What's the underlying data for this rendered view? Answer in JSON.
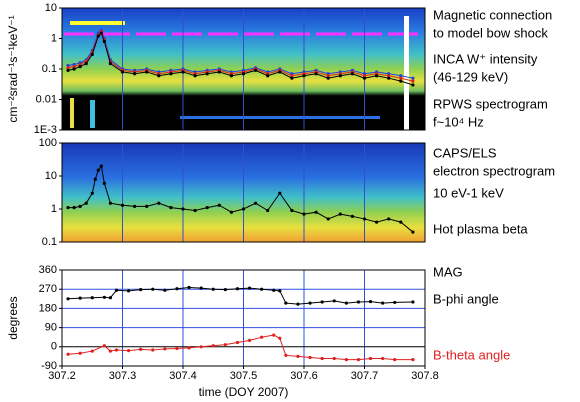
{
  "chart_data": [
    {
      "type": "line",
      "ylabel": "cm⁻²srad⁻¹s⁻¹keV⁻¹",
      "log_y": true,
      "grid": true,
      "annotations": [
        "Magnetic connection",
        "to model bow shock",
        "INCA W⁺ intensity",
        "(46-129 keV)",
        "RPWS spectrogram",
        "f~10⁴ Hz"
      ],
      "xlim": [
        307.2,
        307.8
      ],
      "ylim": [
        0.001,
        10
      ],
      "yticks": [
        10,
        1,
        0.1,
        0.01,
        {
          "value": 0.001,
          "label": "1E-3"
        }
      ],
      "x": [
        307.21,
        307.22,
        307.23,
        307.24,
        307.25,
        307.26,
        307.265,
        307.27,
        307.28,
        307.3,
        307.32,
        307.34,
        307.36,
        307.38,
        307.4,
        307.42,
        307.44,
        307.46,
        307.48,
        307.5,
        307.52,
        307.54,
        307.56,
        307.58,
        307.6,
        307.62,
        307.64,
        307.66,
        307.68,
        307.7,
        307.72,
        307.74,
        307.76,
        307.78
      ],
      "series": [
        {
          "color": "#2040e0",
          "values": [
            0.13,
            0.14,
            0.16,
            0.2,
            0.4,
            1.5,
            1.9,
            1.0,
            0.2,
            0.1,
            0.09,
            0.1,
            0.08,
            0.09,
            0.1,
            0.08,
            0.09,
            0.1,
            0.08,
            0.09,
            0.11,
            0.08,
            0.1,
            0.07,
            0.08,
            0.09,
            0.07,
            0.08,
            0.09,
            0.07,
            0.08,
            0.07,
            0.06,
            0.05
          ]
        },
        {
          "color": "#e02020",
          "values": [
            0.11,
            0.12,
            0.14,
            0.18,
            0.35,
            1.3,
            1.7,
            0.9,
            0.17,
            0.09,
            0.08,
            0.09,
            0.07,
            0.08,
            0.09,
            0.07,
            0.08,
            0.09,
            0.07,
            0.08,
            0.1,
            0.07,
            0.09,
            0.06,
            0.07,
            0.08,
            0.06,
            0.07,
            0.08,
            0.06,
            0.07,
            0.06,
            0.05,
            0.04
          ]
        },
        {
          "color": "#000000",
          "values": [
            0.09,
            0.1,
            0.12,
            0.15,
            0.3,
            1.2,
            1.5,
            0.8,
            0.15,
            0.08,
            0.07,
            0.08,
            0.06,
            0.07,
            0.08,
            0.06,
            0.07,
            0.08,
            0.06,
            0.07,
            0.09,
            0.06,
            0.08,
            0.05,
            0.06,
            0.07,
            0.05,
            0.06,
            0.07,
            0.05,
            0.06,
            0.05,
            0.04,
            0.03
          ]
        }
      ]
    },
    {
      "type": "line",
      "log_y": true,
      "grid": true,
      "annotations": [
        "CAPS/ELS",
        "electron spectrogram",
        "10 eV-1 keV"
      ],
      "xlim": [
        307.2,
        307.8
      ],
      "ylim": [
        0.1,
        100
      ],
      "yticks": [
        100,
        10,
        1,
        0.1
      ],
      "x": [
        307.21,
        307.22,
        307.23,
        307.24,
        307.25,
        307.255,
        307.26,
        307.265,
        307.27,
        307.28,
        307.3,
        307.32,
        307.34,
        307.36,
        307.38,
        307.4,
        307.42,
        307.44,
        307.46,
        307.48,
        307.5,
        307.52,
        307.54,
        307.56,
        307.58,
        307.6,
        307.62,
        307.64,
        307.66,
        307.68,
        307.7,
        307.72,
        307.74,
        307.76,
        307.78
      ],
      "series": [
        {
          "name": "Hot plasma beta",
          "color": "#000000",
          "values": [
            1.1,
            1.1,
            1.2,
            1.5,
            3,
            8,
            15,
            20,
            6,
            1.5,
            1.3,
            1.2,
            1.2,
            1.5,
            1.1,
            1.0,
            0.9,
            1.1,
            1.3,
            0.8,
            1.0,
            1.5,
            0.9,
            3,
            0.9,
            0.7,
            0.8,
            0.5,
            0.7,
            0.6,
            0.5,
            0.4,
            0.5,
            0.4,
            0.2
          ]
        }
      ]
    },
    {
      "type": "line",
      "ylabel": "degrees",
      "xlabel": "time (DOY 2007)",
      "grid": true,
      "annotations": [
        "MAG"
      ],
      "xlim": [
        307.2,
        307.8
      ],
      "ylim": [
        -90,
        360
      ],
      "yticks": [
        360,
        270,
        180,
        90,
        0,
        -90
      ],
      "xticks": [
        307.2,
        307.3,
        307.4,
        307.5,
        307.6,
        307.7,
        307.8
      ],
      "x": [
        307.21,
        307.23,
        307.25,
        307.27,
        307.28,
        307.29,
        307.31,
        307.33,
        307.35,
        307.37,
        307.39,
        307.41,
        307.43,
        307.45,
        307.47,
        307.49,
        307.51,
        307.53,
        307.55,
        307.56,
        307.57,
        307.59,
        307.61,
        307.63,
        307.65,
        307.67,
        307.69,
        307.71,
        307.73,
        307.75,
        307.78
      ],
      "series": [
        {
          "name": "B-phi angle",
          "color": "#000000",
          "values": [
            225,
            228,
            230,
            232,
            230,
            265,
            262,
            268,
            270,
            265,
            272,
            278,
            275,
            270,
            268,
            272,
            275,
            270,
            265,
            262,
            205,
            200,
            205,
            210,
            215,
            205,
            210,
            212,
            205,
            208,
            210
          ]
        },
        {
          "name": "B-theta angle",
          "color": "#e02020",
          "values": [
            -35,
            -30,
            -20,
            5,
            -20,
            -15,
            -18,
            -12,
            -15,
            -10,
            -8,
            -5,
            0,
            5,
            10,
            20,
            30,
            45,
            55,
            40,
            -40,
            -45,
            -50,
            -55,
            -55,
            -60,
            -60,
            -55,
            -55,
            -60,
            -60
          ]
        }
      ]
    }
  ]
}
